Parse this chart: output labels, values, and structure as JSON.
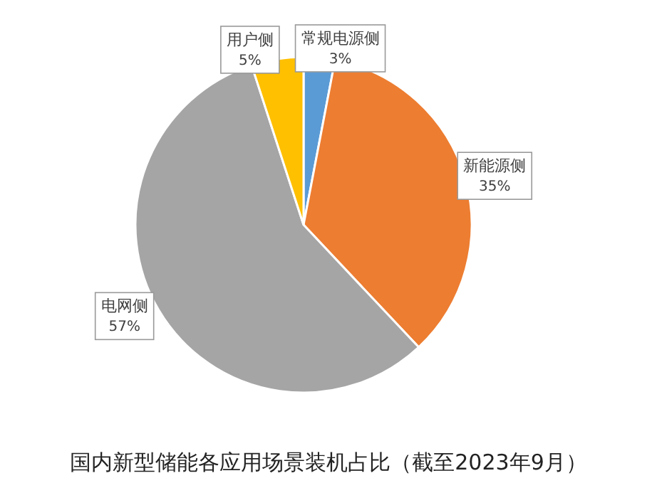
{
  "chart_data": {
    "type": "pie",
    "title": "国内新型储能各应用场景装机占比（截至2023年9月）",
    "categories": [
      "常规电源侧",
      "新能源侧",
      "电网侧",
      "用户侧"
    ],
    "values": [
      3,
      35,
      57,
      5
    ],
    "colors": [
      "#5b9bd5",
      "#ed7d31",
      "#a5a5a5",
      "#ffc000"
    ],
    "value_labels": [
      "3%",
      "35%",
      "57%",
      "5%"
    ]
  }
}
